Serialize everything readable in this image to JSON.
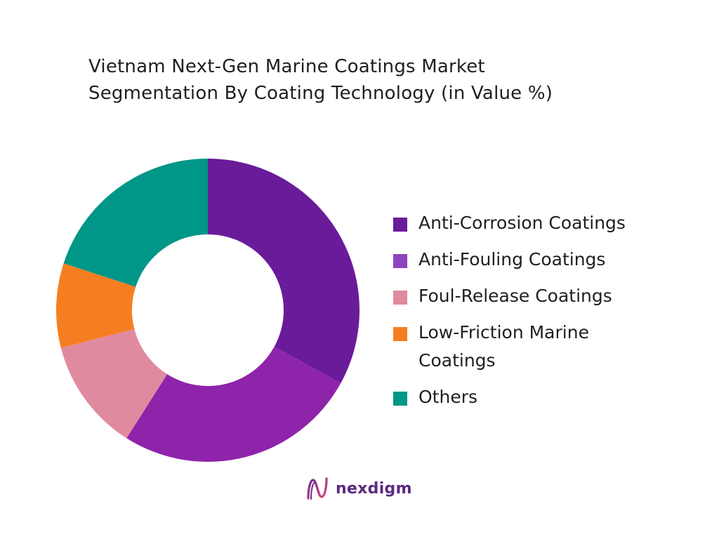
{
  "title": {
    "line1": "Vietnam Next-Gen Marine Coatings Market",
    "line2": "Segmentation By Coating Technology (in Value %)"
  },
  "chart_data": {
    "type": "pie",
    "donut": true,
    "title": "Vietnam Next-Gen Marine Coatings Market Segmentation By Coating Technology (in Value %)",
    "categories": [
      "Anti-Corrosion Coatings",
      "Anti-Fouling Coatings",
      "Foul-Release Coatings",
      "Low-Friction Marine Coatings",
      "Others"
    ],
    "values": [
      33,
      26,
      12,
      9,
      20
    ],
    "colors": [
      "#6a1b9a",
      "#8e24aa",
      "#e08aa0",
      "#f57f20",
      "#009688"
    ],
    "legend_colors": [
      "#6a1b9a",
      "#8e44c0",
      "#e08aa0",
      "#f57f20",
      "#009688"
    ],
    "legend_position": "right",
    "start_angle_deg": 0,
    "direction": "clockwise"
  },
  "legend": {
    "items": [
      {
        "label": "Anti-Corrosion Coatings"
      },
      {
        "label": "Anti-Fouling Coatings"
      },
      {
        "label": "Foul-Release Coatings"
      },
      {
        "label": "Low-Friction Marine Coatings"
      },
      {
        "label": "Others"
      }
    ]
  },
  "brand": {
    "name": "nexdigm",
    "icon": "nexdigm-logo-icon",
    "color": "#5a2a82"
  }
}
